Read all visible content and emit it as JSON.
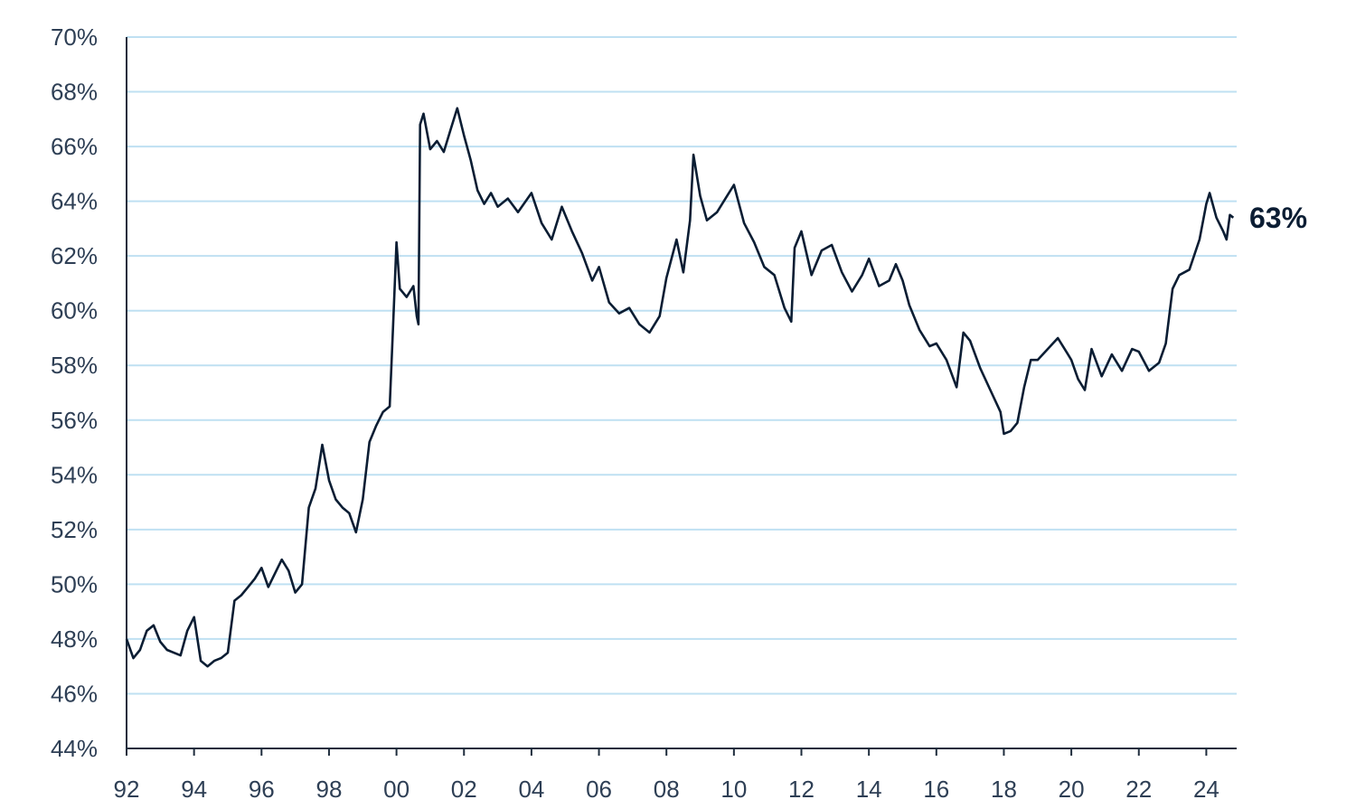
{
  "chart_data": {
    "type": "line",
    "title": "",
    "xlabel": "",
    "ylabel": "",
    "xlim": [
      1992,
      2024.9
    ],
    "ylim": [
      44,
      70
    ],
    "y_ticks": [
      44,
      46,
      48,
      50,
      52,
      54,
      56,
      58,
      60,
      62,
      64,
      66,
      68,
      70
    ],
    "y_tick_labels": [
      "44%",
      "46%",
      "48%",
      "50%",
      "52%",
      "54%",
      "56%",
      "58%",
      "60%",
      "62%",
      "64%",
      "66%",
      "68%",
      "70%"
    ],
    "x_ticks": [
      1992,
      1994,
      1996,
      1998,
      2000,
      2002,
      2004,
      2006,
      2008,
      2010,
      2012,
      2014,
      2016,
      2018,
      2020,
      2022,
      2024
    ],
    "x_tick_labels": [
      "92",
      "94",
      "96",
      "98",
      "00",
      "02",
      "04",
      "06",
      "08",
      "10",
      "12",
      "14",
      "16",
      "18",
      "20",
      "22",
      "24"
    ],
    "grid": "horizontal",
    "colors": {
      "line": "#0b1d33",
      "grid": "#bfe0f2",
      "axis": "#1f2d3d",
      "tick_text": "#2e3f55"
    },
    "end_label": "63%",
    "series": [
      {
        "x": [
          1992.0,
          1992.2,
          1992.4,
          1992.6,
          1992.8,
          1993.0,
          1993.2,
          1993.4,
          1993.6,
          1993.8,
          1994.0,
          1994.2,
          1994.4,
          1994.6,
          1994.8,
          1995.0,
          1995.2,
          1995.4,
          1995.6,
          1995.8,
          1996.0,
          1996.2,
          1996.4,
          1996.6,
          1996.8,
          1997.0,
          1997.2,
          1997.4,
          1997.6,
          1997.8,
          1998.0,
          1998.2,
          1998.4,
          1998.6,
          1998.8,
          1999.0,
          1999.2,
          1999.4,
          1999.6,
          1999.8,
          1999.9,
          2000.0,
          2000.1,
          2000.3,
          2000.5,
          2000.6,
          2000.65,
          2000.7,
          2000.8,
          2001.0,
          2001.2,
          2001.4,
          2001.6,
          2001.8,
          2002.0,
          2002.2,
          2002.4,
          2002.6,
          2002.8,
          2003.0,
          2003.3,
          2003.6,
          2004.0,
          2004.3,
          2004.6,
          2004.9,
          2005.2,
          2005.5,
          2005.8,
          2006.0,
          2006.3,
          2006.6,
          2006.9,
          2007.2,
          2007.5,
          2007.8,
          2008.0,
          2008.3,
          2008.5,
          2008.7,
          2008.8,
          2009.0,
          2009.2,
          2009.5,
          2009.8,
          2010.0,
          2010.3,
          2010.6,
          2010.9,
          2011.2,
          2011.5,
          2011.7,
          2011.8,
          2012.0,
          2012.3,
          2012.6,
          2012.9,
          2013.2,
          2013.5,
          2013.8,
          2014.0,
          2014.3,
          2014.6,
          2014.8,
          2015.0,
          2015.2,
          2015.5,
          2015.8,
          2016.0,
          2016.3,
          2016.6,
          2016.8,
          2017.0,
          2017.3,
          2017.6,
          2017.9,
          2018.0,
          2018.2,
          2018.4,
          2018.6,
          2018.8,
          2019.0,
          2019.3,
          2019.6,
          2019.9,
          2020.0,
          2020.2,
          2020.4,
          2020.6,
          2020.9,
          2021.2,
          2021.5,
          2021.8,
          2022.0,
          2022.3,
          2022.6,
          2022.8,
          2023.0,
          2023.2,
          2023.5,
          2023.8,
          2024.0,
          2024.1,
          2024.3,
          2024.5,
          2024.6,
          2024.7,
          2024.8
        ],
        "y": [
          48.0,
          47.3,
          47.6,
          48.3,
          48.5,
          47.9,
          47.6,
          47.5,
          47.4,
          48.3,
          48.8,
          47.2,
          47.0,
          47.2,
          47.3,
          47.5,
          49.4,
          49.6,
          49.9,
          50.2,
          50.6,
          49.9,
          50.4,
          50.9,
          50.5,
          49.7,
          50.0,
          52.8,
          53.5,
          55.1,
          53.8,
          53.1,
          52.8,
          52.6,
          51.9,
          53.1,
          55.2,
          55.8,
          56.3,
          56.5,
          59.5,
          62.5,
          60.8,
          60.5,
          60.9,
          59.8,
          59.5,
          66.8,
          67.2,
          65.9,
          66.2,
          65.8,
          66.6,
          67.4,
          66.4,
          65.5,
          64.4,
          63.9,
          64.3,
          63.8,
          64.1,
          63.6,
          64.3,
          63.2,
          62.6,
          63.8,
          62.9,
          62.1,
          61.1,
          61.6,
          60.3,
          59.9,
          60.1,
          59.5,
          59.2,
          59.8,
          61.2,
          62.6,
          61.4,
          63.3,
          65.7,
          64.2,
          63.3,
          63.6,
          64.2,
          64.6,
          63.2,
          62.5,
          61.6,
          61.3,
          60.1,
          59.6,
          62.3,
          62.9,
          61.3,
          62.2,
          62.4,
          61.4,
          60.7,
          61.3,
          61.9,
          60.9,
          61.1,
          61.7,
          61.1,
          60.2,
          59.3,
          58.7,
          58.8,
          58.2,
          57.2,
          59.2,
          58.9,
          57.9,
          57.1,
          56.3,
          55.5,
          55.6,
          55.9,
          57.2,
          58.2,
          58.2,
          58.6,
          59.0,
          58.4,
          58.2,
          57.5,
          57.1,
          58.6,
          57.6,
          58.4,
          57.8,
          58.6,
          58.5,
          57.8,
          58.1,
          58.8,
          60.8,
          61.3,
          61.5,
          62.6,
          63.9,
          64.3,
          63.4,
          62.9,
          62.6,
          63.5,
          63.4
        ]
      }
    ]
  }
}
